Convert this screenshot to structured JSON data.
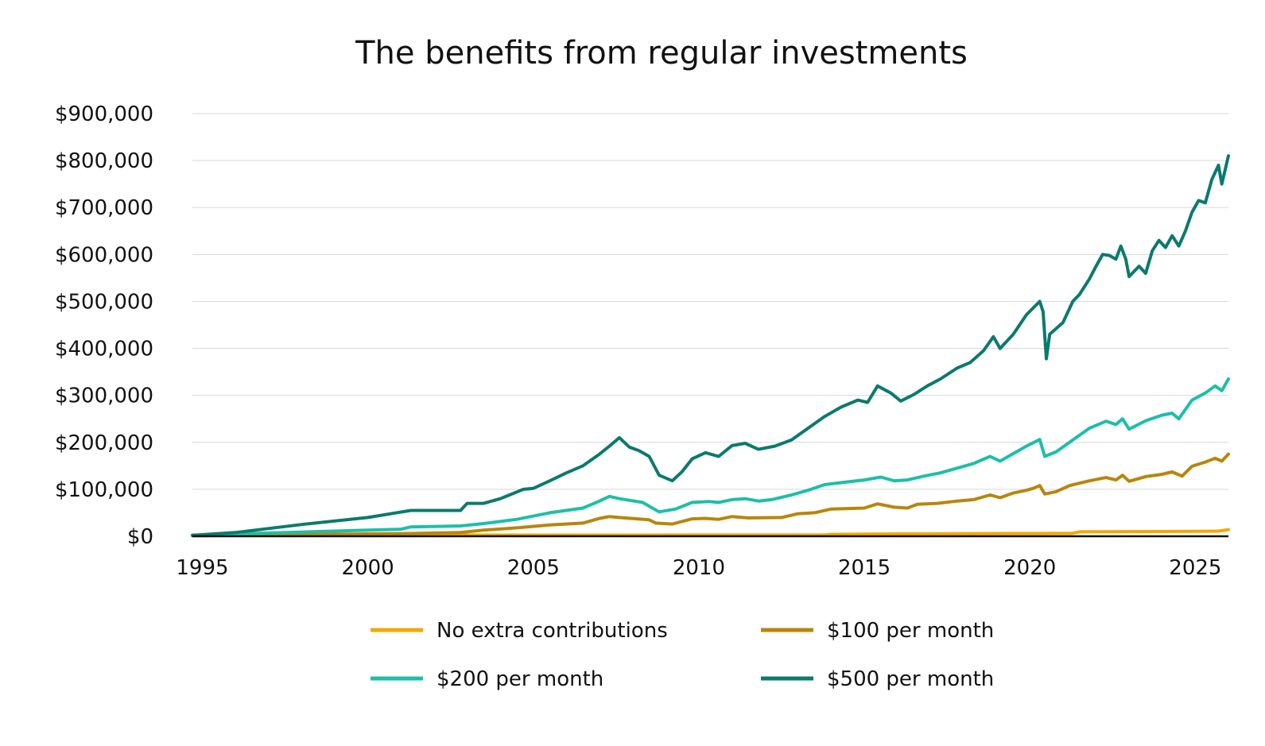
{
  "chart_data": {
    "type": "line",
    "title": "The benefits from regular investments",
    "xlabel": "",
    "ylabel": "",
    "xlim": [
      1994.7,
      2026.0
    ],
    "ylim": [
      0,
      900000
    ],
    "grid": true,
    "legend_placement": "bottom",
    "x_ticks": [
      1995,
      2000,
      2005,
      2010,
      2015,
      2020,
      2025
    ],
    "x_tick_labels": [
      "1995",
      "2000",
      "2005",
      "2010",
      "2015",
      "2020",
      "2025"
    ],
    "y_ticks": [
      0,
      100000,
      200000,
      300000,
      400000,
      500000,
      600000,
      700000,
      800000,
      900000
    ],
    "y_tick_labels": [
      "$0",
      "$100,000",
      "$200,000",
      "$300,000",
      "$400,000",
      "$500,000",
      "$600,000",
      "$700,000",
      "$800,000",
      "$900,000"
    ],
    "series": [
      {
        "name": "No extra contributions",
        "color": "#F2A900",
        "points": [
          [
            1994.7,
            2000
          ],
          [
            1998,
            2200
          ],
          [
            2002,
            2500
          ],
          [
            2006,
            2600
          ],
          [
            2010,
            2700
          ],
          [
            2013.8,
            2800
          ],
          [
            2014,
            4000
          ],
          [
            2016,
            5000
          ],
          [
            2018,
            5500
          ],
          [
            2020,
            6000
          ],
          [
            2021.3,
            6500
          ],
          [
            2021.5,
            9500
          ],
          [
            2023,
            10000
          ],
          [
            2025,
            10500
          ],
          [
            2025.7,
            11000
          ],
          [
            2026,
            14000
          ]
        ]
      },
      {
        "name": "$100 per month",
        "color": "#B8860B",
        "points": [
          [
            1994.7,
            1000
          ],
          [
            1996,
            2000
          ],
          [
            1998,
            3500
          ],
          [
            2000,
            5000
          ],
          [
            2001.3,
            6000
          ],
          [
            2002.8,
            8000
          ],
          [
            2003.5,
            13000
          ],
          [
            2004.5,
            18000
          ],
          [
            2005.5,
            24000
          ],
          [
            2006.5,
            28000
          ],
          [
            2007,
            38000
          ],
          [
            2007.3,
            42000
          ],
          [
            2007.6,
            40000
          ],
          [
            2008.5,
            35000
          ],
          [
            2008.7,
            28000
          ],
          [
            2009.2,
            26000
          ],
          [
            2009.8,
            37000
          ],
          [
            2010.2,
            38000
          ],
          [
            2010.6,
            36000
          ],
          [
            2011,
            42000
          ],
          [
            2011.5,
            39000
          ],
          [
            2012.5,
            40000
          ],
          [
            2013,
            48000
          ],
          [
            2013.5,
            50000
          ],
          [
            2014,
            58000
          ],
          [
            2015,
            60000
          ],
          [
            2015.4,
            69000
          ],
          [
            2015.9,
            62000
          ],
          [
            2016.3,
            60000
          ],
          [
            2016.6,
            68000
          ],
          [
            2017.2,
            70000
          ],
          [
            2017.8,
            75000
          ],
          [
            2018.3,
            78000
          ],
          [
            2018.8,
            88000
          ],
          [
            2019.1,
            82000
          ],
          [
            2019.5,
            92000
          ],
          [
            2019.9,
            98000
          ],
          [
            2020.1,
            102000
          ],
          [
            2020.3,
            108000
          ],
          [
            2020.45,
            90000
          ],
          [
            2020.8,
            95000
          ],
          [
            2021.2,
            108000
          ],
          [
            2021.8,
            118000
          ],
          [
            2022.3,
            125000
          ],
          [
            2022.6,
            120000
          ],
          [
            2022.8,
            130000
          ],
          [
            2023,
            117000
          ],
          [
            2023.5,
            127000
          ],
          [
            2024,
            132000
          ],
          [
            2024.3,
            137000
          ],
          [
            2024.6,
            128000
          ],
          [
            2024.9,
            149000
          ],
          [
            2025.3,
            158000
          ],
          [
            2025.6,
            166000
          ],
          [
            2025.8,
            160000
          ],
          [
            2026,
            175000
          ]
        ]
      },
      {
        "name": "$200 per month",
        "color": "#1DBFA8",
        "points": [
          [
            1994.7,
            2000
          ],
          [
            1996,
            5000
          ],
          [
            1998,
            9000
          ],
          [
            2000,
            13000
          ],
          [
            2001,
            15000
          ],
          [
            2001.3,
            20000
          ],
          [
            2002.8,
            22000
          ],
          [
            2003.5,
            27000
          ],
          [
            2004.5,
            36000
          ],
          [
            2005.5,
            50000
          ],
          [
            2006.5,
            60000
          ],
          [
            2007,
            75000
          ],
          [
            2007.3,
            85000
          ],
          [
            2007.6,
            80000
          ],
          [
            2008.3,
            72000
          ],
          [
            2008.8,
            52000
          ],
          [
            2009.3,
            58000
          ],
          [
            2009.8,
            72000
          ],
          [
            2010.3,
            74000
          ],
          [
            2010.6,
            72000
          ],
          [
            2011,
            78000
          ],
          [
            2011.4,
            80000
          ],
          [
            2011.8,
            75000
          ],
          [
            2012.2,
            78000
          ],
          [
            2012.8,
            88000
          ],
          [
            2013.3,
            98000
          ],
          [
            2013.8,
            110000
          ],
          [
            2014.4,
            115000
          ],
          [
            2015,
            120000
          ],
          [
            2015.5,
            126000
          ],
          [
            2015.9,
            118000
          ],
          [
            2016.3,
            120000
          ],
          [
            2016.8,
            128000
          ],
          [
            2017.3,
            135000
          ],
          [
            2017.8,
            145000
          ],
          [
            2018.3,
            155000
          ],
          [
            2018.8,
            170000
          ],
          [
            2019.1,
            160000
          ],
          [
            2019.6,
            180000
          ],
          [
            2019.9,
            192000
          ],
          [
            2020.3,
            206000
          ],
          [
            2020.45,
            170000
          ],
          [
            2020.8,
            180000
          ],
          [
            2021.3,
            205000
          ],
          [
            2021.8,
            230000
          ],
          [
            2022.3,
            245000
          ],
          [
            2022.6,
            238000
          ],
          [
            2022.8,
            250000
          ],
          [
            2023,
            228000
          ],
          [
            2023.5,
            246000
          ],
          [
            2024,
            258000
          ],
          [
            2024.3,
            262000
          ],
          [
            2024.5,
            250000
          ],
          [
            2024.9,
            290000
          ],
          [
            2025.3,
            305000
          ],
          [
            2025.6,
            320000
          ],
          [
            2025.8,
            310000
          ],
          [
            2026,
            335000
          ]
        ]
      },
      {
        "name": "$500 per month",
        "color": "#0B7A6E",
        "points": [
          [
            1994.7,
            2000
          ],
          [
            1996,
            8000
          ],
          [
            1998,
            25000
          ],
          [
            2000,
            40000
          ],
          [
            2001.3,
            55000
          ],
          [
            2002.8,
            55000
          ],
          [
            2003,
            70000
          ],
          [
            2003.5,
            70000
          ],
          [
            2004,
            80000
          ],
          [
            2004.7,
            100000
          ],
          [
            2005,
            102000
          ],
          [
            2005.5,
            118000
          ],
          [
            2006,
            135000
          ],
          [
            2006.5,
            150000
          ],
          [
            2007,
            175000
          ],
          [
            2007.3,
            192000
          ],
          [
            2007.6,
            210000
          ],
          [
            2007.9,
            190000
          ],
          [
            2008.2,
            182000
          ],
          [
            2008.5,
            170000
          ],
          [
            2008.8,
            130000
          ],
          [
            2009.2,
            118000
          ],
          [
            2009.5,
            138000
          ],
          [
            2009.8,
            165000
          ],
          [
            2010.2,
            178000
          ],
          [
            2010.6,
            170000
          ],
          [
            2011,
            193000
          ],
          [
            2011.4,
            198000
          ],
          [
            2011.8,
            185000
          ],
          [
            2012.3,
            192000
          ],
          [
            2012.8,
            205000
          ],
          [
            2013.3,
            230000
          ],
          [
            2013.8,
            255000
          ],
          [
            2014.3,
            275000
          ],
          [
            2014.8,
            290000
          ],
          [
            2015.1,
            285000
          ],
          [
            2015.4,
            320000
          ],
          [
            2015.8,
            305000
          ],
          [
            2016.1,
            288000
          ],
          [
            2016.5,
            302000
          ],
          [
            2016.9,
            320000
          ],
          [
            2017.3,
            335000
          ],
          [
            2017.8,
            358000
          ],
          [
            2018.2,
            370000
          ],
          [
            2018.6,
            395000
          ],
          [
            2018.9,
            425000
          ],
          [
            2019.1,
            400000
          ],
          [
            2019.5,
            430000
          ],
          [
            2019.9,
            472000
          ],
          [
            2020.3,
            500000
          ],
          [
            2020.4,
            478000
          ],
          [
            2020.5,
            378000
          ],
          [
            2020.6,
            430000
          ],
          [
            2021,
            455000
          ],
          [
            2021.3,
            500000
          ],
          [
            2021.5,
            515000
          ],
          [
            2021.8,
            548000
          ],
          [
            2022,
            575000
          ],
          [
            2022.2,
            600000
          ],
          [
            2022.4,
            598000
          ],
          [
            2022.6,
            590000
          ],
          [
            2022.75,
            618000
          ],
          [
            2022.9,
            590000
          ],
          [
            2023,
            553000
          ],
          [
            2023.3,
            575000
          ],
          [
            2023.5,
            560000
          ],
          [
            2023.7,
            608000
          ],
          [
            2023.9,
            630000
          ],
          [
            2024.1,
            615000
          ],
          [
            2024.3,
            640000
          ],
          [
            2024.5,
            618000
          ],
          [
            2024.7,
            650000
          ],
          [
            2024.9,
            690000
          ],
          [
            2025.1,
            715000
          ],
          [
            2025.3,
            710000
          ],
          [
            2025.5,
            760000
          ],
          [
            2025.7,
            790000
          ],
          [
            2025.8,
            750000
          ],
          [
            2026,
            810000
          ]
        ]
      }
    ]
  }
}
